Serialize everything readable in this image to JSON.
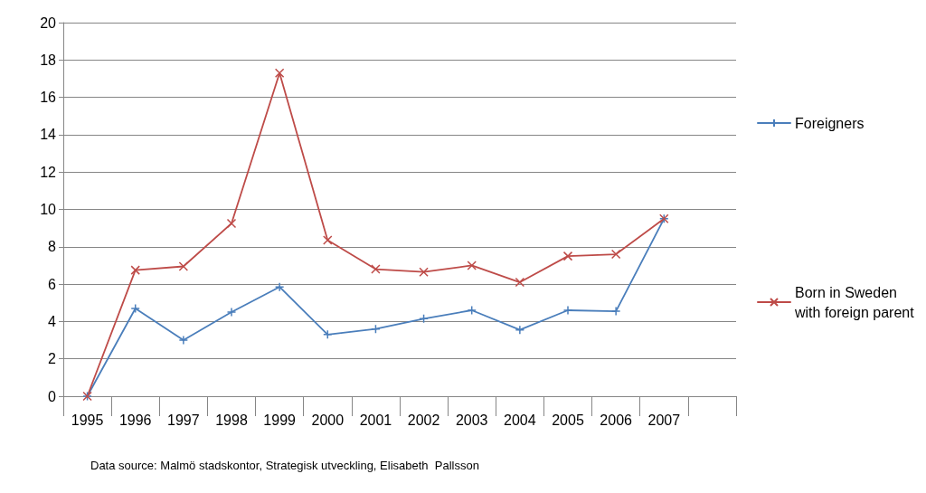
{
  "chart_data": {
    "type": "line",
    "categories": [
      "1995",
      "1996",
      "1997",
      "1998",
      "1999",
      "2000",
      "2001",
      "2002",
      "2003",
      "2004",
      "2005",
      "2006",
      "2007",
      null
    ],
    "series": [
      {
        "name": "Foreigners",
        "color": "#4a7ebb",
        "marker": "plus",
        "values": [
          0,
          4.7,
          3.0,
          4.5,
          5.85,
          3.3,
          3.6,
          4.15,
          4.6,
          3.55,
          4.6,
          4.55,
          9.5,
          null
        ]
      },
      {
        "name": "Born in Sweden with foreign parent",
        "color": "#be4b48",
        "marker": "cross",
        "values": [
          0,
          6.75,
          6.95,
          9.25,
          17.3,
          8.35,
          6.8,
          6.65,
          7.0,
          6.1,
          7.5,
          7.6,
          9.5,
          null
        ]
      }
    ],
    "ylim": [
      0,
      20
    ],
    "yticks": [
      0,
      2,
      4,
      6,
      8,
      10,
      12,
      14,
      16,
      18,
      20
    ],
    "grid": "y",
    "legend": "right",
    "line_style": "solid",
    "annotations": [
      "Data source: Malmö stadskontor, Strategisk utveckling, Elisabeth  Pallsson"
    ]
  }
}
